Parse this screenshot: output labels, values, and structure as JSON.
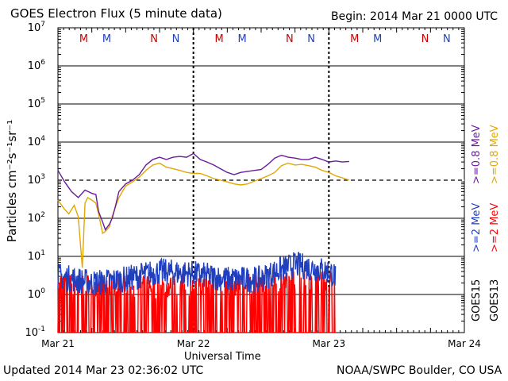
{
  "header": {
    "title": "GOES Electron Flux (5 minute data)",
    "begin": "Begin: 2014 Mar 21 0000 UTC"
  },
  "footer": {
    "updated": "Updated 2014 Mar 23 02:36:02 UTC",
    "credit": "NOAA/SWPC Boulder, CO USA"
  },
  "chart_data": {
    "type": "line",
    "title": "GOES Electron Flux (5 minute data)",
    "xlabel": "Universal Time",
    "ylabel": "Particles cm⁻²s⁻¹sr⁻¹",
    "yscale": "log",
    "ylim_exponent": [
      -1,
      7
    ],
    "y_tick_base": "10",
    "y_tick_exponents": [
      "-1",
      "0",
      "1",
      "2",
      "3",
      "4",
      "5",
      "6",
      "7"
    ],
    "xlim_days": [
      0,
      3
    ],
    "x_ticks": [
      {
        "label": "Mar 21",
        "day": 0
      },
      {
        "label": "Mar 22",
        "day": 1
      },
      {
        "label": "Mar 23",
        "day": 2
      },
      {
        "label": "Mar 24",
        "day": 3
      }
    ],
    "alert_threshold": 1000,
    "local_time_markers": [
      {
        "label": "M",
        "day": 0.19,
        "color": "#cc0000"
      },
      {
        "label": "M",
        "day": 0.36,
        "color": "#1f3fbf"
      },
      {
        "label": "N",
        "day": 0.71,
        "color": "#cc0000"
      },
      {
        "label": "N",
        "day": 0.87,
        "color": "#1f3fbf"
      },
      {
        "label": "M",
        "day": 1.19,
        "color": "#cc0000"
      },
      {
        "label": "M",
        "day": 1.36,
        "color": "#1f3fbf"
      },
      {
        "label": "N",
        "day": 1.71,
        "color": "#cc0000"
      },
      {
        "label": "N",
        "day": 1.87,
        "color": "#1f3fbf"
      },
      {
        "label": "M",
        "day": 2.19,
        "color": "#cc0000"
      },
      {
        "label": "M",
        "day": 2.36,
        "color": "#1f3fbf"
      },
      {
        "label": "N",
        "day": 2.71,
        "color": "#cc0000"
      },
      {
        "label": "N",
        "day": 2.87,
        "color": "#1f3fbf"
      }
    ],
    "day_dividers_dashed": [
      1,
      2
    ],
    "legend": {
      "goes15_label": "GOES15",
      "goes13_label": "GOES13",
      "goes15_high": {
        "label": ">=0.8 MeV",
        "color": "#6a1b9a"
      },
      "goes15_low": {
        "label": ">=2 MeV",
        "color": "#1f3fbf"
      },
      "goes13_high": {
        "label": ">=0.8 MeV",
        "color": "#e0a800"
      },
      "goes13_low": {
        "label": ">=2 MeV",
        "color": "#ff0000"
      }
    },
    "series": [
      {
        "name": "GOES15 >=0.8 MeV",
        "color": "#6a1b9a",
        "style": "line",
        "x": [
          0,
          0.05,
          0.1,
          0.15,
          0.2,
          0.25,
          0.28,
          0.3,
          0.33,
          0.35,
          0.38,
          0.4,
          0.42,
          0.45,
          0.5,
          0.55,
          0.6,
          0.65,
          0.7,
          0.75,
          0.8,
          0.85,
          0.9,
          0.95,
          1.0,
          1.05,
          1.1,
          1.15,
          1.2,
          1.25,
          1.3,
          1.35,
          1.4,
          1.45,
          1.5,
          1.55,
          1.6,
          1.65,
          1.7,
          1.75,
          1.8,
          1.85,
          1.9,
          1.95,
          2.0,
          2.05,
          2.1,
          2.15
        ],
        "y": [
          1800,
          900,
          500,
          350,
          550,
          450,
          420,
          150,
          80,
          50,
          70,
          100,
          180,
          500,
          800,
          1000,
          1400,
          2500,
          3500,
          4000,
          3500,
          4000,
          4200,
          4000,
          5000,
          3500,
          3000,
          2500,
          2000,
          1600,
          1400,
          1600,
          1700,
          1800,
          1900,
          2600,
          3800,
          4500,
          4000,
          3800,
          3500,
          3500,
          4000,
          3500,
          3000,
          3200,
          3000,
          3100
        ]
      },
      {
        "name": "GOES13 >=0.8 MeV",
        "color": "#e0a800",
        "style": "line",
        "x": [
          0,
          0.05,
          0.08,
          0.12,
          0.15,
          0.18,
          0.2,
          0.22,
          0.25,
          0.28,
          0.3,
          0.33,
          0.35,
          0.38,
          0.4,
          0.42,
          0.45,
          0.5,
          0.55,
          0.6,
          0.65,
          0.7,
          0.75,
          0.8,
          0.85,
          0.9,
          0.95,
          1.0,
          1.05,
          1.1,
          1.15,
          1.2,
          1.25,
          1.3,
          1.35,
          1.4,
          1.45,
          1.5,
          1.55,
          1.6,
          1.65,
          1.7,
          1.75,
          1.8,
          1.85,
          1.9,
          1.95,
          2.0,
          2.05,
          2.1,
          2.15
        ],
        "y": [
          300,
          170,
          130,
          220,
          110,
          5,
          250,
          350,
          300,
          250,
          130,
          40,
          45,
          60,
          110,
          180,
          350,
          700,
          900,
          1200,
          1800,
          2500,
          2800,
          2200,
          2000,
          1800,
          1600,
          1500,
          1500,
          1300,
          1100,
          1000,
          900,
          800,
          750,
          800,
          950,
          1100,
          1300,
          1600,
          2400,
          2800,
          2500,
          2600,
          2400,
          2200,
          1800,
          1600,
          1300,
          1150,
          1000
        ]
      },
      {
        "name": "GOES15 >=2 MeV",
        "color": "#1f3fbf",
        "style": "noisy",
        "x": [
          0,
          0.25,
          0.5,
          0.75,
          1.0,
          1.25,
          1.5,
          1.75,
          2.0,
          2.05
        ],
        "y": [
          3,
          2,
          2.5,
          4,
          3.5,
          2.5,
          2.5,
          6,
          4,
          3
        ],
        "spread_decades": 0.35
      },
      {
        "name": "GOES13 >=2 MeV",
        "color": "#ff0000",
        "style": "spiky",
        "x": [
          0,
          0.5,
          1.0,
          1.5,
          2.0,
          2.05
        ],
        "y": [
          1.5,
          1.2,
          1.2,
          1.4,
          2,
          1.8
        ],
        "floor": 0.1
      }
    ]
  }
}
